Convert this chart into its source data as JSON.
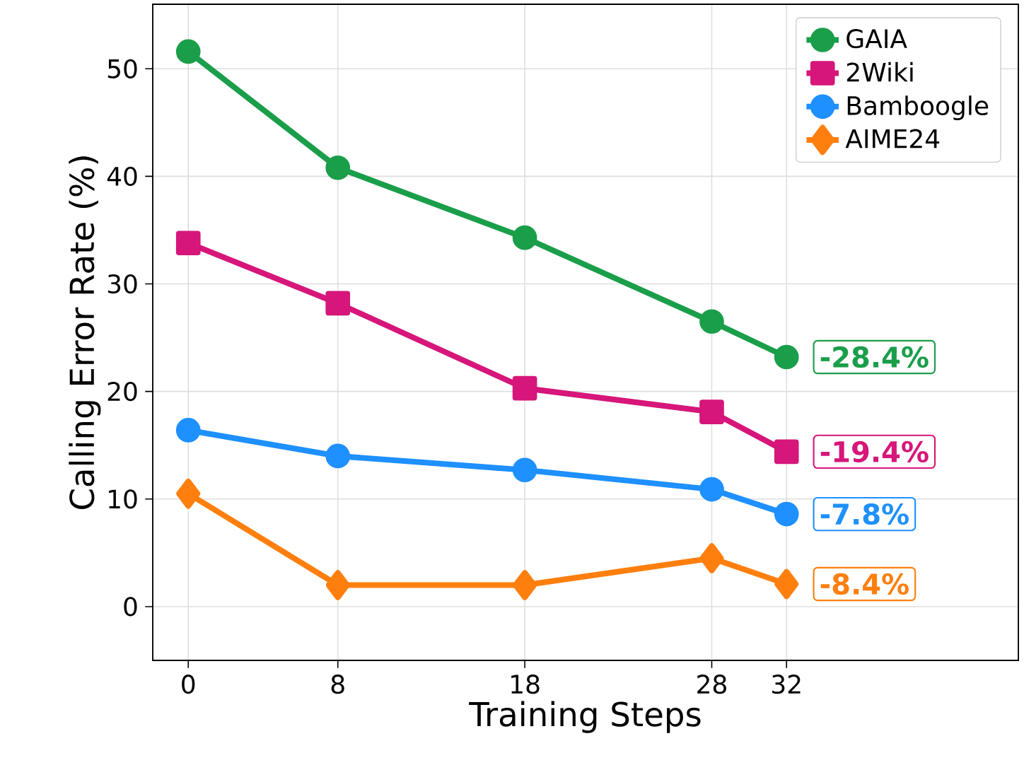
{
  "chart_data": {
    "type": "line",
    "xlabel": "Training Steps",
    "ylabel": "Calling Error Rate (%)",
    "x": [
      0,
      8,
      18,
      28,
      32
    ],
    "series": [
      {
        "name": "GAIA",
        "color": "#1a9e4a",
        "marker": "circle",
        "values": [
          51.6,
          40.8,
          34.3,
          26.5,
          23.2
        ]
      },
      {
        "name": "2Wiki",
        "color": "#d6167a",
        "marker": "square",
        "values": [
          33.8,
          28.2,
          20.3,
          18.1,
          14.4
        ]
      },
      {
        "name": "Bamboogle",
        "color": "#1e90ff",
        "marker": "circle",
        "values": [
          16.4,
          14.0,
          12.7,
          10.9,
          8.6
        ]
      },
      {
        "name": "AIME24",
        "color": "#ff7f0e",
        "marker": "diamond",
        "values": [
          10.5,
          2.0,
          2.0,
          4.5,
          2.1
        ]
      }
    ],
    "annotations": [
      "-28.4%",
      "-19.4%",
      "-7.8%",
      "-8.4%"
    ],
    "xlim": [
      -1.9,
      44.4
    ],
    "ylim": [
      -5,
      56
    ],
    "xticks": [
      0,
      8,
      18,
      28,
      32
    ],
    "yticks": [
      0,
      10,
      20,
      30,
      40,
      50
    ],
    "grid": true,
    "legend": "top right",
    "line_style": "solid"
  }
}
